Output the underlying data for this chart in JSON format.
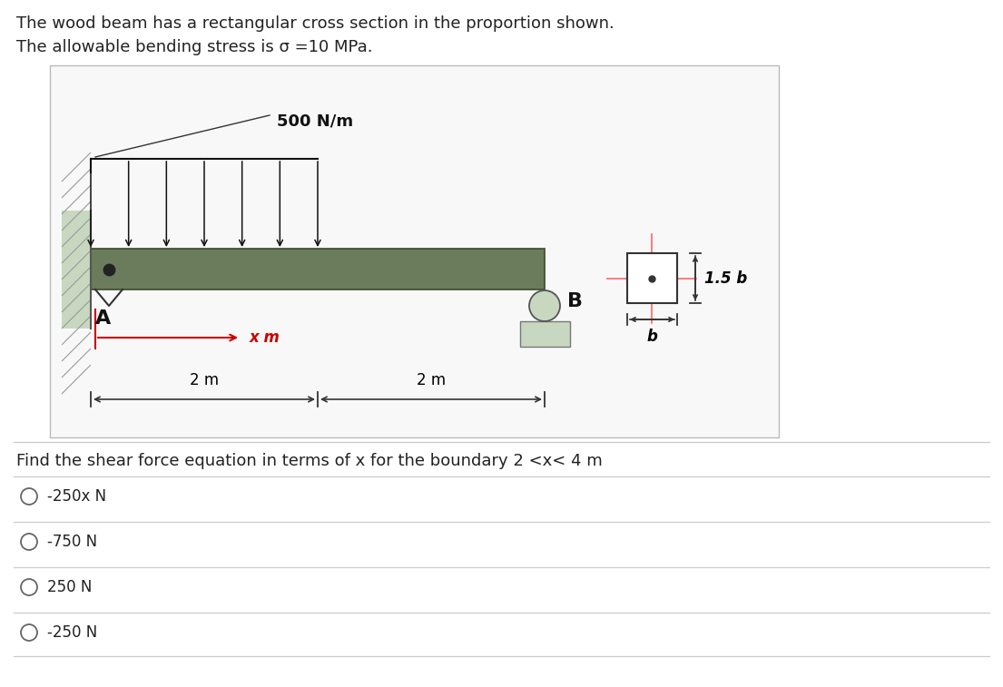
{
  "title_line1": "The wood beam has a rectangular cross section in the proportion shown.",
  "title_line2": "The allowable bending stress is σ =10 MPa.",
  "question": "Find the shear force equation in terms of x for the boundary 2 <x< 4 m",
  "options": [
    "-250x N",
    "-750 N",
    "250 N",
    "-250 N"
  ],
  "beam_color": "#6b7c5c",
  "wall_color": "#c8d8c0",
  "bg_color": "#ffffff",
  "distributed_load_label": "500 N/m",
  "x_label": "x m",
  "dim1": "2 m",
  "dim2": "2 m",
  "label_A": "A",
  "label_B": "B",
  "cross_label_h": "1.5 b",
  "cross_label_w": "b"
}
